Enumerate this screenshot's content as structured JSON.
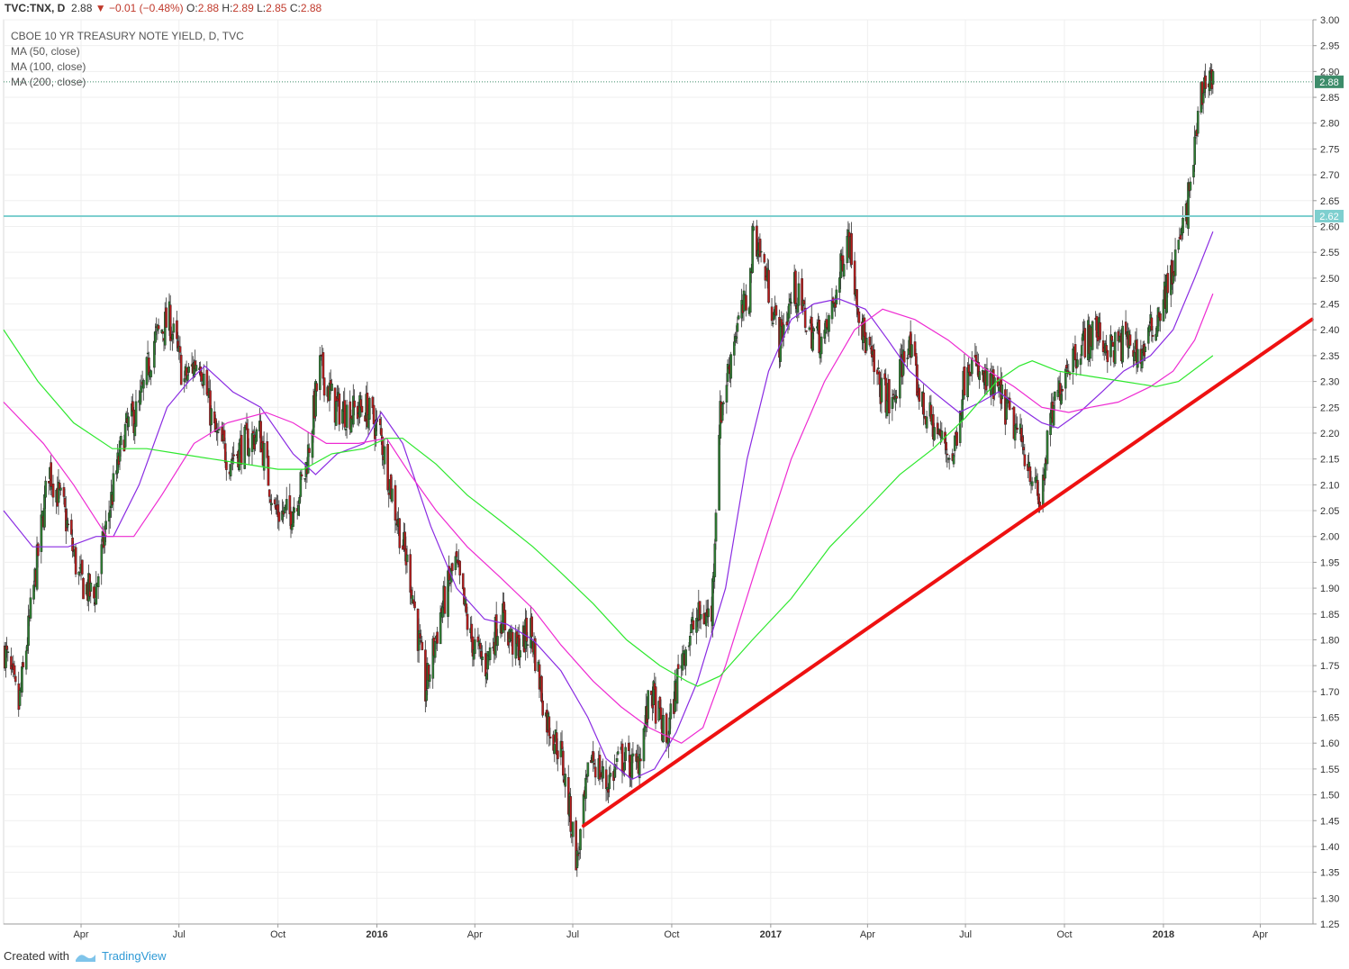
{
  "header": {
    "symbol": "TVC:TNX, D",
    "last": "2.88",
    "change": "−0.01 (−0.48%)",
    "open_label": "O:",
    "open": "2.88",
    "high_label": "H:",
    "high": "2.89",
    "low_label": "L:",
    "low": "2.85",
    "close_label": "C:",
    "close": "2.88"
  },
  "legend": {
    "title": "CBOE 10 YR TREASURY NOTE YIELD, D, TVC",
    "ma50": "MA (50, close)",
    "ma100": "MA (100, close)",
    "ma200": "MA (200, close)"
  },
  "footer": {
    "created_with": "Created with",
    "brand": "TradingView"
  },
  "colors": {
    "up": "#2e7d32",
    "down": "#b71c1c",
    "ma50": "#8a2be2",
    "ma100": "#ee2bd2",
    "ma200": "#2ee82e",
    "resistance": "#7ecfcf",
    "trendline": "#ee1111",
    "last_price": "#3d8c6a"
  },
  "chart_data": {
    "type": "candlestick",
    "title": "CBOE 10 YR TREASURY NOTE YIELD, D, TVC",
    "x_range": [
      "2015-01-19",
      "2018-05-20"
    ],
    "ylim": [
      1.25,
      3.0
    ],
    "y_ticks": [
      "3.00",
      "2.95",
      "2.90",
      "2.85",
      "2.80",
      "2.75",
      "2.70",
      "2.65",
      "2.60",
      "2.55",
      "2.50",
      "2.45",
      "2.40",
      "2.35",
      "2.30",
      "2.25",
      "2.20",
      "2.15",
      "2.10",
      "2.05",
      "2.00",
      "1.95",
      "1.90",
      "1.85",
      "1.80",
      "1.75",
      "1.70",
      "1.65",
      "1.60",
      "1.55",
      "1.50",
      "1.45",
      "1.40",
      "1.35",
      "1.30",
      "1.25"
    ],
    "x_ticks": [
      {
        "label": "Apr",
        "date": "2015-04-01",
        "bold": false
      },
      {
        "label": "Jul",
        "date": "2015-07-01",
        "bold": false
      },
      {
        "label": "Oct",
        "date": "2015-10-01",
        "bold": false
      },
      {
        "label": "2016",
        "date": "2016-01-01",
        "bold": true
      },
      {
        "label": "Apr",
        "date": "2016-04-01",
        "bold": false
      },
      {
        "label": "Jul",
        "date": "2016-07-01",
        "bold": false
      },
      {
        "label": "Oct",
        "date": "2016-10-01",
        "bold": false
      },
      {
        "label": "2017",
        "date": "2017-01-01",
        "bold": true
      },
      {
        "label": "Apr",
        "date": "2017-04-01",
        "bold": false
      },
      {
        "label": "Jul",
        "date": "2017-07-01",
        "bold": false
      },
      {
        "label": "Oct",
        "date": "2017-10-01",
        "bold": false
      },
      {
        "label": "2018",
        "date": "2018-01-01",
        "bold": true
      },
      {
        "label": "Apr",
        "date": "2018-04-01",
        "bold": false
      }
    ],
    "close_path": [
      [
        "2015-01-20",
        1.78
      ],
      [
        "2015-02-02",
        1.67
      ],
      [
        "2015-02-16",
        1.9
      ],
      [
        "2015-03-02",
        2.13
      ],
      [
        "2015-03-16",
        2.05
      ],
      [
        "2015-03-30",
        1.92
      ],
      [
        "2015-04-13",
        1.88
      ],
      [
        "2015-04-27",
        2.05
      ],
      [
        "2015-05-11",
        2.2
      ],
      [
        "2015-05-25",
        2.25
      ],
      [
        "2015-06-08",
        2.38
      ],
      [
        "2015-06-22",
        2.42
      ],
      [
        "2015-07-06",
        2.3
      ],
      [
        "2015-07-20",
        2.35
      ],
      [
        "2015-08-03",
        2.2
      ],
      [
        "2015-08-17",
        2.15
      ],
      [
        "2015-08-31",
        2.18
      ],
      [
        "2015-09-14",
        2.2
      ],
      [
        "2015-09-28",
        2.05
      ],
      [
        "2015-10-12",
        2.04
      ],
      [
        "2015-10-26",
        2.12
      ],
      [
        "2015-11-09",
        2.33
      ],
      [
        "2015-11-23",
        2.25
      ],
      [
        "2015-12-07",
        2.24
      ],
      [
        "2015-12-21",
        2.25
      ],
      [
        "2016-01-04",
        2.2
      ],
      [
        "2016-01-18",
        2.05
      ],
      [
        "2016-02-01",
        1.92
      ],
      [
        "2016-02-15",
        1.7
      ],
      [
        "2016-02-29",
        1.85
      ],
      [
        "2016-03-14",
        1.95
      ],
      [
        "2016-03-28",
        1.8
      ],
      [
        "2016-04-11",
        1.75
      ],
      [
        "2016-04-25",
        1.85
      ],
      [
        "2016-05-09",
        1.78
      ],
      [
        "2016-05-23",
        1.82
      ],
      [
        "2016-06-06",
        1.65
      ],
      [
        "2016-06-20",
        1.58
      ],
      [
        "2016-07-05",
        1.37
      ],
      [
        "2016-07-18",
        1.58
      ],
      [
        "2016-08-01",
        1.52
      ],
      [
        "2016-08-15",
        1.57
      ],
      [
        "2016-08-29",
        1.55
      ],
      [
        "2016-09-12",
        1.7
      ],
      [
        "2016-09-26",
        1.6
      ],
      [
        "2016-10-10",
        1.77
      ],
      [
        "2016-10-24",
        1.84
      ],
      [
        "2016-11-07",
        1.85
      ],
      [
        "2016-11-14",
        2.22
      ],
      [
        "2016-11-28",
        2.39
      ],
      [
        "2016-12-12",
        2.47
      ],
      [
        "2016-12-16",
        2.6
      ],
      [
        "2016-12-26",
        2.52
      ],
      [
        "2017-01-09",
        2.38
      ],
      [
        "2017-01-23",
        2.48
      ],
      [
        "2017-02-06",
        2.4
      ],
      [
        "2017-02-20",
        2.38
      ],
      [
        "2017-03-06",
        2.5
      ],
      [
        "2017-03-13",
        2.6
      ],
      [
        "2017-03-27",
        2.4
      ],
      [
        "2017-04-10",
        2.3
      ],
      [
        "2017-04-24",
        2.25
      ],
      [
        "2017-05-08",
        2.38
      ],
      [
        "2017-05-22",
        2.25
      ],
      [
        "2017-06-05",
        2.2
      ],
      [
        "2017-06-19",
        2.15
      ],
      [
        "2017-07-03",
        2.35
      ],
      [
        "2017-07-17",
        2.3
      ],
      [
        "2017-07-31",
        2.28
      ],
      [
        "2017-08-14",
        2.22
      ],
      [
        "2017-08-28",
        2.15
      ],
      [
        "2017-09-08",
        2.06
      ],
      [
        "2017-09-18",
        2.22
      ],
      [
        "2017-10-02",
        2.33
      ],
      [
        "2017-10-16",
        2.37
      ],
      [
        "2017-10-30",
        2.4
      ],
      [
        "2017-11-13",
        2.36
      ],
      [
        "2017-11-27",
        2.38
      ],
      [
        "2017-12-11",
        2.35
      ],
      [
        "2017-12-25",
        2.42
      ],
      [
        "2018-01-08",
        2.5
      ],
      [
        "2018-01-22",
        2.62
      ],
      [
        "2018-02-05",
        2.85
      ],
      [
        "2018-02-12",
        2.9
      ],
      [
        "2018-02-16",
        2.88
      ]
    ],
    "resistance_level": 2.62,
    "last_price": 2.88,
    "trendline": [
      [
        "2016-07-11",
        1.44
      ],
      [
        "2018-05-19",
        2.42
      ]
    ],
    "series": [
      {
        "name": "MA (50, close)",
        "points": [
          [
            "2015-01-19",
            2.05
          ],
          [
            "2015-02-15",
            1.98
          ],
          [
            "2015-03-20",
            1.98
          ],
          [
            "2015-04-15",
            2.0
          ],
          [
            "2015-05-01",
            2.0
          ],
          [
            "2015-05-25",
            2.1
          ],
          [
            "2015-06-20",
            2.25
          ],
          [
            "2015-07-10",
            2.3
          ],
          [
            "2015-07-25",
            2.33
          ],
          [
            "2015-08-20",
            2.28
          ],
          [
            "2015-09-15",
            2.25
          ],
          [
            "2015-10-15",
            2.16
          ],
          [
            "2015-11-05",
            2.12
          ],
          [
            "2015-11-25",
            2.16
          ],
          [
            "2015-12-20",
            2.18
          ],
          [
            "2016-01-05",
            2.24
          ],
          [
            "2016-01-25",
            2.18
          ],
          [
            "2016-02-20",
            2.02
          ],
          [
            "2016-03-15",
            1.9
          ],
          [
            "2016-04-10",
            1.84
          ],
          [
            "2016-05-01",
            1.83
          ],
          [
            "2016-05-25",
            1.8
          ],
          [
            "2016-06-20",
            1.74
          ],
          [
            "2016-07-15",
            1.65
          ],
          [
            "2016-08-01",
            1.57
          ],
          [
            "2016-08-25",
            1.53
          ],
          [
            "2016-09-15",
            1.55
          ],
          [
            "2016-10-05",
            1.62
          ],
          [
            "2016-10-25",
            1.72
          ],
          [
            "2016-11-20",
            1.9
          ],
          [
            "2016-12-10",
            2.15
          ],
          [
            "2016-12-30",
            2.32
          ],
          [
            "2017-01-20",
            2.42
          ],
          [
            "2017-02-10",
            2.45
          ],
          [
            "2017-03-05",
            2.46
          ],
          [
            "2017-03-30",
            2.44
          ],
          [
            "2017-04-20",
            2.38
          ],
          [
            "2017-05-10",
            2.32
          ],
          [
            "2017-06-01",
            2.28
          ],
          [
            "2017-06-25",
            2.24
          ],
          [
            "2017-07-15",
            2.26
          ],
          [
            "2017-08-01",
            2.28
          ],
          [
            "2017-08-20",
            2.25
          ],
          [
            "2017-09-10",
            2.22
          ],
          [
            "2017-09-25",
            2.21
          ],
          [
            "2017-10-15",
            2.24
          ],
          [
            "2017-11-05",
            2.28
          ],
          [
            "2017-11-25",
            2.32
          ],
          [
            "2017-12-20",
            2.35
          ],
          [
            "2018-01-10",
            2.4
          ],
          [
            "2018-01-30",
            2.5
          ],
          [
            "2018-02-16",
            2.59
          ]
        ]
      },
      {
        "name": "MA (100, close)",
        "points": [
          [
            "2015-01-19",
            2.26
          ],
          [
            "2015-02-25",
            2.18
          ],
          [
            "2015-03-25",
            2.1
          ],
          [
            "2015-04-25",
            2.0
          ],
          [
            "2015-05-20",
            2.0
          ],
          [
            "2015-06-15",
            2.08
          ],
          [
            "2015-07-15",
            2.18
          ],
          [
            "2015-08-15",
            2.22
          ],
          [
            "2015-09-20",
            2.24
          ],
          [
            "2015-10-15",
            2.22
          ],
          [
            "2015-11-15",
            2.18
          ],
          [
            "2015-12-15",
            2.18
          ],
          [
            "2016-01-10",
            2.19
          ],
          [
            "2016-02-01",
            2.12
          ],
          [
            "2016-02-25",
            2.05
          ],
          [
            "2016-03-25",
            1.98
          ],
          [
            "2016-04-25",
            1.92
          ],
          [
            "2016-05-25",
            1.86
          ],
          [
            "2016-06-20",
            1.79
          ],
          [
            "2016-07-20",
            1.72
          ],
          [
            "2016-08-15",
            1.67
          ],
          [
            "2016-09-10",
            1.63
          ],
          [
            "2016-10-10",
            1.6
          ],
          [
            "2016-10-30",
            1.63
          ],
          [
            "2016-11-20",
            1.75
          ],
          [
            "2016-12-20",
            1.95
          ],
          [
            "2017-01-20",
            2.15
          ],
          [
            "2017-02-20",
            2.3
          ],
          [
            "2017-03-20",
            2.4
          ],
          [
            "2017-04-15",
            2.44
          ],
          [
            "2017-05-15",
            2.42
          ],
          [
            "2017-06-15",
            2.38
          ],
          [
            "2017-07-15",
            2.33
          ],
          [
            "2017-08-15",
            2.29
          ],
          [
            "2017-09-10",
            2.25
          ],
          [
            "2017-10-05",
            2.24
          ],
          [
            "2017-10-25",
            2.25
          ],
          [
            "2017-11-20",
            2.26
          ],
          [
            "2017-12-20",
            2.29
          ],
          [
            "2018-01-10",
            2.32
          ],
          [
            "2018-01-30",
            2.38
          ],
          [
            "2018-02-16",
            2.47
          ]
        ]
      },
      {
        "name": "MA (200, close)",
        "points": [
          [
            "2015-01-19",
            2.4
          ],
          [
            "2015-02-20",
            2.3
          ],
          [
            "2015-03-25",
            2.22
          ],
          [
            "2015-04-30",
            2.17
          ],
          [
            "2015-06-01",
            2.17
          ],
          [
            "2015-07-01",
            2.16
          ],
          [
            "2015-08-01",
            2.15
          ],
          [
            "2015-09-01",
            2.14
          ],
          [
            "2015-10-01",
            2.13
          ],
          [
            "2015-10-25",
            2.13
          ],
          [
            "2015-11-20",
            2.16
          ],
          [
            "2015-12-20",
            2.17
          ],
          [
            "2016-01-10",
            2.19
          ],
          [
            "2016-01-25",
            2.19
          ],
          [
            "2016-02-25",
            2.14
          ],
          [
            "2016-03-25",
            2.08
          ],
          [
            "2016-04-25",
            2.03
          ],
          [
            "2016-05-25",
            1.98
          ],
          [
            "2016-06-20",
            1.93
          ],
          [
            "2016-07-20",
            1.87
          ],
          [
            "2016-08-20",
            1.8
          ],
          [
            "2016-09-20",
            1.75
          ],
          [
            "2016-10-15",
            1.72
          ],
          [
            "2016-10-25",
            1.71
          ],
          [
            "2016-11-15",
            1.73
          ],
          [
            "2016-12-15",
            1.8
          ],
          [
            "2017-01-20",
            1.88
          ],
          [
            "2017-02-25",
            1.98
          ],
          [
            "2017-03-30",
            2.05
          ],
          [
            "2017-05-01",
            2.12
          ],
          [
            "2017-06-01",
            2.17
          ],
          [
            "2017-07-01",
            2.23
          ],
          [
            "2017-07-30",
            2.3
          ],
          [
            "2017-08-20",
            2.33
          ],
          [
            "2017-09-01",
            2.34
          ],
          [
            "2017-09-25",
            2.32
          ],
          [
            "2017-10-25",
            2.31
          ],
          [
            "2017-11-25",
            2.3
          ],
          [
            "2017-12-25",
            2.29
          ],
          [
            "2018-01-15",
            2.3
          ],
          [
            "2018-02-16",
            2.35
          ]
        ]
      }
    ]
  }
}
